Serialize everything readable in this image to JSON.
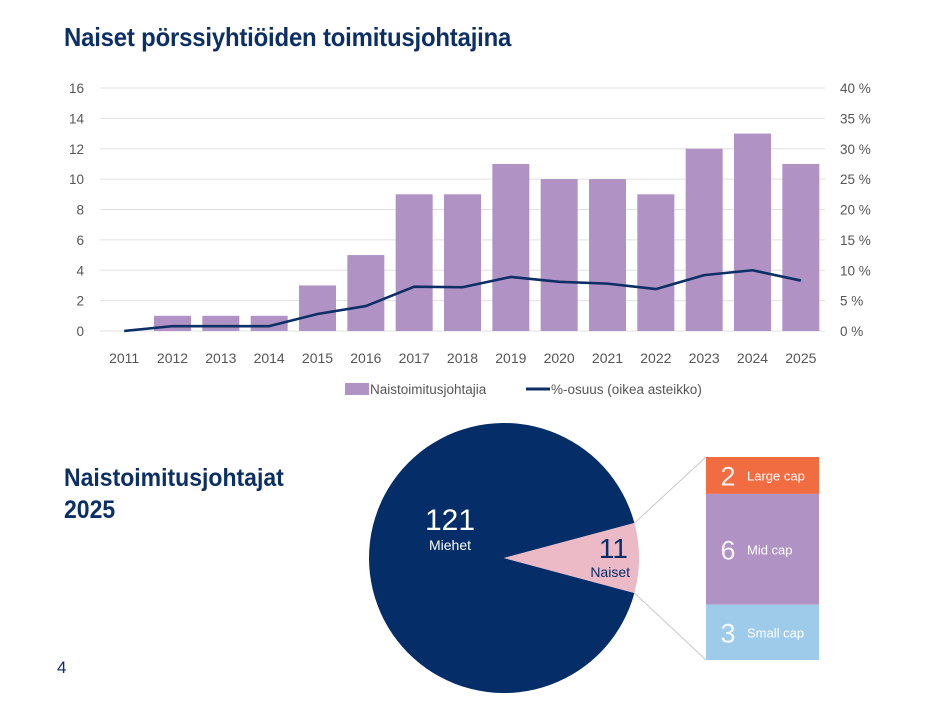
{
  "page": {
    "title": "Naiset pörssiyhtiöiden toimitusjohtajina",
    "subtitle_line1": "Naistoimitusjohtajat",
    "subtitle_line2": "2025",
    "page_number": "4"
  },
  "colors": {
    "bar": "#b092c4",
    "line": "#0c2f66",
    "grid": "#e0e0e0",
    "tick_text": "#555555",
    "men": "#052d67",
    "women": "#ecbac6",
    "large_cap": "#f26c41",
    "mid_cap": "#b092c4",
    "small_cap": "#9ecbea"
  },
  "chart_data": [
    {
      "type": "bar+line",
      "title": "Naiset pörssiyhtiöiden toimitusjohtajina",
      "categories": [
        "2011",
        "2012",
        "2013",
        "2014",
        "2015",
        "2016",
        "2017",
        "2018",
        "2019",
        "2020",
        "2021",
        "2022",
        "2023",
        "2024",
        "2025"
      ],
      "series": [
        {
          "name": "Naistoimitusjohtajia",
          "type": "bar",
          "axis": "left",
          "values": [
            0,
            1,
            1,
            1,
            3,
            5,
            9,
            9,
            11,
            10,
            10,
            9,
            12,
            13,
            11
          ]
        },
        {
          "name": "%-osuus (oikea asteikko)",
          "type": "line",
          "axis": "right",
          "values": [
            0,
            0.8,
            0.8,
            0.8,
            2.8,
            4.1,
            7.3,
            7.2,
            8.9,
            8.1,
            7.8,
            6.9,
            9.2,
            10.0,
            8.3
          ]
        }
      ],
      "left_axis": {
        "ylim": [
          0,
          16
        ],
        "ticks": [
          "0",
          "2",
          "4",
          "6",
          "8",
          "10",
          "12",
          "14",
          "16"
        ]
      },
      "right_axis": {
        "ylim": [
          0,
          40
        ],
        "ticks": [
          "0 %",
          "5 %",
          "10 %",
          "15 %",
          "20 %",
          "25 %",
          "30 %",
          "35 %",
          "40 %"
        ]
      },
      "grid": true,
      "legend_position": "bottom"
    },
    {
      "type": "pie",
      "title": "Naistoimitusjohtajat 2025",
      "slices": [
        {
          "label": "Miehet",
          "value": 121
        },
        {
          "label": "Naiset",
          "value": 11
        }
      ],
      "breakdown": {
        "of": "Naiset",
        "type": "stacked-bar",
        "segments": [
          {
            "label": "Large cap",
            "value": 2
          },
          {
            "label": "Mid cap",
            "value": 6
          },
          {
            "label": "Small cap",
            "value": 3
          }
        ]
      }
    }
  ]
}
